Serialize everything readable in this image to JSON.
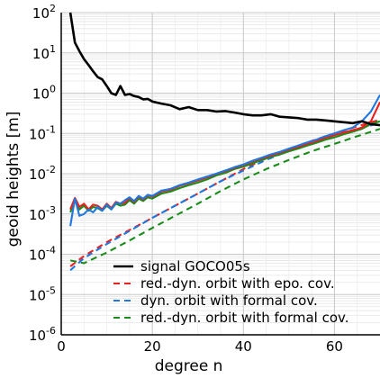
{
  "chart_data": {
    "type": "line",
    "title": "",
    "xlabel": "degree n",
    "ylabel": "geoid heights [m]",
    "xlim": [
      0,
      70
    ],
    "ylim": [
      1e-06,
      100
    ],
    "yscale": "log",
    "grid": true,
    "legend_position": "lower-right",
    "x_ticks": [
      0,
      20,
      40,
      60
    ],
    "x_tick_labels": [
      "0",
      "20",
      "40",
      "60"
    ],
    "y_ticks": [
      1e-06,
      1e-05,
      0.0001,
      0.001,
      0.01,
      0.1,
      1,
      10,
      100
    ],
    "y_tick_labels": [
      {
        "base": "10",
        "exp": "-6"
      },
      {
        "base": "10",
        "exp": "-5"
      },
      {
        "base": "10",
        "exp": "-4"
      },
      {
        "base": "10",
        "exp": "-3"
      },
      {
        "base": "10",
        "exp": "-2"
      },
      {
        "base": "10",
        "exp": "-1"
      },
      {
        "base": "10",
        "exp": "0"
      },
      {
        "base": "10",
        "exp": "1"
      },
      {
        "base": "10",
        "exp": "2"
      }
    ],
    "series": [
      {
        "name": "signal GOCO05s",
        "color": "#000000",
        "dash": "solid",
        "x": [
          2,
          3,
          4,
          5,
          6,
          7,
          8,
          9,
          10,
          11,
          12,
          13,
          14,
          15,
          16,
          17,
          18,
          19,
          20,
          22,
          24,
          26,
          28,
          30,
          32,
          34,
          36,
          38,
          40,
          42,
          44,
          46,
          48,
          50,
          52,
          54,
          56,
          58,
          60,
          62,
          64,
          66,
          68,
          70
        ],
        "y": [
          100,
          18,
          11,
          7,
          5,
          3.5,
          2.5,
          2.2,
          1.5,
          1.0,
          0.9,
          1.5,
          0.9,
          0.95,
          0.85,
          0.8,
          0.7,
          0.72,
          0.62,
          0.55,
          0.5,
          0.4,
          0.45,
          0.38,
          0.38,
          0.35,
          0.36,
          0.33,
          0.3,
          0.28,
          0.28,
          0.3,
          0.26,
          0.25,
          0.24,
          0.22,
          0.22,
          0.21,
          0.2,
          0.19,
          0.18,
          0.2,
          0.17,
          0.16
        ]
      },
      {
        "name": "red.-dyn. orbit with epo. cov.",
        "color": "#e8211e",
        "dash": "dashed",
        "x": [
          2,
          5,
          10,
          15,
          20,
          25,
          30,
          35,
          40,
          45,
          50,
          55,
          60,
          65,
          70
        ],
        "y": [
          5e-05,
          9e-05,
          0.0002,
          0.0004,
          0.0008,
          0.0016,
          0.0032,
          0.0065,
          0.013,
          0.024,
          0.04,
          0.065,
          0.1,
          0.15,
          0.22
        ]
      },
      {
        "name": "dyn. orbit with formal cov.",
        "color": "#1f77e0",
        "dash": "dashed",
        "x": [
          2,
          5,
          10,
          15,
          20,
          25,
          30,
          35,
          40,
          45,
          50,
          55,
          60,
          65,
          70
        ],
        "y": [
          4e-05,
          8e-05,
          0.00018,
          0.00038,
          0.0008,
          0.0016,
          0.0032,
          0.0065,
          0.012,
          0.022,
          0.037,
          0.06,
          0.09,
          0.13,
          0.18
        ]
      },
      {
        "name": "red.-dyn. orbit with formal cov.",
        "color": "#1a8c1a",
        "dash": "dashed",
        "x": [
          2,
          5,
          10,
          15,
          20,
          25,
          30,
          35,
          40,
          45,
          50,
          55,
          60,
          65,
          70
        ],
        "y": [
          7e-05,
          6e-05,
          0.00011,
          0.00022,
          0.00045,
          0.0009,
          0.0018,
          0.0037,
          0.0072,
          0.013,
          0.022,
          0.036,
          0.055,
          0.085,
          0.13
        ]
      },
      {
        "name": "",
        "color": "#1a8c1a",
        "dash": "solid",
        "x": [
          2,
          3,
          4,
          5,
          6,
          7,
          8,
          9,
          10,
          11,
          12,
          13,
          14,
          15,
          16,
          17,
          18,
          19,
          20,
          22,
          24,
          26,
          28,
          30,
          32,
          34,
          36,
          38,
          40,
          42,
          44,
          46,
          48,
          50,
          52,
          54,
          56,
          58,
          60,
          62,
          64,
          66,
          68,
          70
        ],
        "y": [
          0.0011,
          0.0022,
          0.0013,
          0.0016,
          0.0012,
          0.0015,
          0.0014,
          0.0012,
          0.0016,
          0.0013,
          0.0018,
          0.0016,
          0.0017,
          0.0022,
          0.0018,
          0.0024,
          0.0021,
          0.0026,
          0.0024,
          0.0032,
          0.0036,
          0.0044,
          0.0052,
          0.006,
          0.0072,
          0.009,
          0.0105,
          0.013,
          0.015,
          0.018,
          0.022,
          0.026,
          0.03,
          0.036,
          0.042,
          0.05,
          0.058,
          0.07,
          0.08,
          0.095,
          0.11,
          0.13,
          0.17,
          0.2
        ]
      },
      {
        "name": "",
        "color": "#e8211e",
        "dash": "solid",
        "x": [
          2,
          3,
          4,
          5,
          6,
          7,
          8,
          9,
          10,
          11,
          12,
          13,
          14,
          15,
          16,
          17,
          18,
          19,
          20,
          22,
          24,
          26,
          28,
          30,
          32,
          34,
          36,
          38,
          40,
          42,
          44,
          46,
          48,
          50,
          52,
          54,
          56,
          58,
          60,
          62,
          64,
          66,
          68,
          70
        ],
        "y": [
          0.0013,
          0.0025,
          0.0015,
          0.0018,
          0.0013,
          0.0017,
          0.0016,
          0.0013,
          0.0018,
          0.0014,
          0.002,
          0.0018,
          0.0019,
          0.0025,
          0.002,
          0.0027,
          0.0023,
          0.0029,
          0.0027,
          0.0036,
          0.004,
          0.005,
          0.0058,
          0.0068,
          0.008,
          0.0098,
          0.0115,
          0.014,
          0.0165,
          0.02,
          0.024,
          0.028,
          0.033,
          0.04,
          0.046,
          0.055,
          0.064,
          0.078,
          0.09,
          0.105,
          0.12,
          0.14,
          0.2,
          0.6
        ]
      },
      {
        "name": "",
        "color": "#1f77e0",
        "dash": "solid",
        "x": [
          2,
          3,
          4,
          5,
          6,
          7,
          8,
          9,
          10,
          11,
          12,
          13,
          14,
          15,
          16,
          17,
          18,
          19,
          20,
          22,
          24,
          26,
          28,
          30,
          32,
          34,
          36,
          38,
          40,
          42,
          44,
          46,
          48,
          50,
          52,
          54,
          56,
          58,
          60,
          62,
          64,
          66,
          68,
          70
        ],
        "y": [
          0.0005,
          0.0024,
          0.0009,
          0.001,
          0.0013,
          0.0011,
          0.0015,
          0.0012,
          0.0017,
          0.0013,
          0.0019,
          0.0018,
          0.0022,
          0.0026,
          0.0021,
          0.0028,
          0.0024,
          0.003,
          0.0028,
          0.0038,
          0.0042,
          0.0052,
          0.006,
          0.0072,
          0.0085,
          0.01,
          0.012,
          0.0145,
          0.017,
          0.021,
          0.025,
          0.03,
          0.035,
          0.042,
          0.05,
          0.06,
          0.07,
          0.085,
          0.1,
          0.12,
          0.14,
          0.2,
          0.35,
          0.9
        ]
      }
    ]
  }
}
